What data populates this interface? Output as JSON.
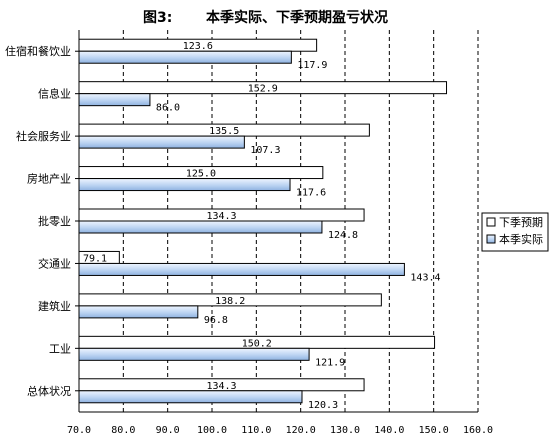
{
  "chart_data": {
    "type": "bar",
    "orientation": "horizontal",
    "title_prefix": "图3:",
    "title": "本季实际、下季预期盈亏状况",
    "categories": [
      "住宿和餐饮业",
      "信息业",
      "社会服务业",
      "房地产业",
      "批零业",
      "交通业",
      "建筑业",
      "工业",
      "总体状况"
    ],
    "series": [
      {
        "name": "下季预期",
        "values": [
          123.6,
          152.9,
          135.5,
          125.0,
          134.3,
          79.1,
          138.2,
          150.2,
          134.3
        ],
        "labels": [
          "123.6",
          "152.9",
          "135.5",
          "125.0",
          "134.3",
          "79.1",
          "138.2",
          "150.2",
          "134.3"
        ],
        "color": "#ffffff"
      },
      {
        "name": "本季实际",
        "values": [
          117.9,
          86.0,
          107.3,
          117.6,
          124.8,
          143.4,
          96.8,
          121.9,
          120.3
        ],
        "labels": [
          "117.9",
          "86.0",
          "107.3",
          "117.6",
          "124.8",
          "143.4",
          "96.8",
          "121.9",
          "120.3"
        ],
        "color": "#b8d2f0"
      }
    ],
    "xlim": [
      70,
      160
    ],
    "ticks": [
      "70.0",
      "80.0",
      "90.0",
      "100.0",
      "110.0",
      "120.0",
      "130.0",
      "140.0",
      "150.0",
      "160.0"
    ],
    "grid": true,
    "legend": "right"
  }
}
